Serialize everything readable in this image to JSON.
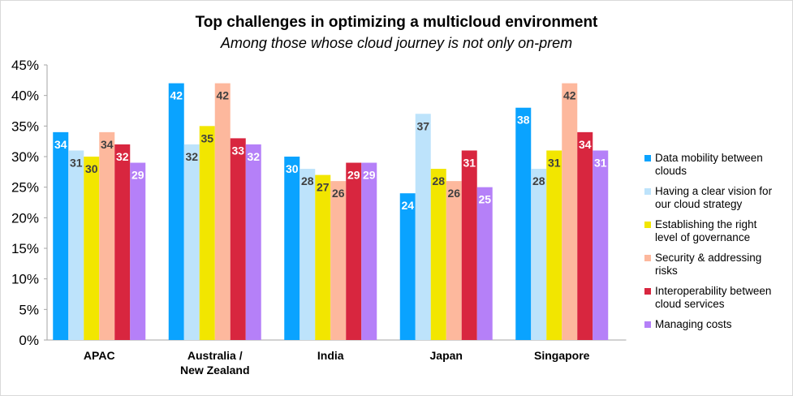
{
  "chart_data": {
    "type": "bar",
    "title": "Top challenges in optimizing a multicloud environment",
    "subtitle": "Among those whose cloud journey is not only on-prem",
    "categories": [
      "APAC",
      "Australia / New Zealand",
      "India",
      "Japan",
      "Singapore"
    ],
    "category_lines": [
      [
        "APAC"
      ],
      [
        "Australia /",
        "New Zealand"
      ],
      [
        "India"
      ],
      [
        "Japan"
      ],
      [
        "Singapore"
      ]
    ],
    "ylim": [
      0,
      45
    ],
    "yticks": [
      "0%",
      "5%",
      "10%",
      "15%",
      "20%",
      "25%",
      "30%",
      "35%",
      "40%",
      "45%"
    ],
    "legend_position": "right",
    "grid": false,
    "series": [
      {
        "name": "Data mobility between clouds",
        "lines": [
          "Data mobility between",
          "clouds"
        ],
        "color": "#0AA3FF",
        "label_color": "#ffffff",
        "values": [
          34,
          42,
          30,
          24,
          38
        ]
      },
      {
        "name": "Having a clear vision for our cloud strategy",
        "lines": [
          "Having a clear vision for",
          "our cloud strategy"
        ],
        "color": "#BDE3FB",
        "label_color": "#404040",
        "values": [
          31,
          32,
          28,
          37,
          28
        ]
      },
      {
        "name": "Establishing the right level of governance",
        "lines": [
          "Establishing the right",
          "level of governance"
        ],
        "color": "#F2E600",
        "label_color": "#404040",
        "values": [
          30,
          35,
          27,
          28,
          31
        ]
      },
      {
        "name": "Security & addressing risks",
        "lines": [
          "Security & addressing",
          "risks"
        ],
        "color": "#FDB89D",
        "label_color": "#404040",
        "values": [
          34,
          42,
          26,
          26,
          42
        ]
      },
      {
        "name": "Interoperability between cloud services",
        "lines": [
          "Interoperability between",
          "cloud services"
        ],
        "color": "#D8263F",
        "label_color": "#ffffff",
        "values": [
          32,
          33,
          29,
          31,
          34
        ]
      },
      {
        "name": "Managing costs",
        "lines": [
          "Managing costs"
        ],
        "color": "#B580F8",
        "label_color": "#ffffff",
        "values": [
          29,
          32,
          29,
          25,
          31
        ]
      }
    ]
  }
}
